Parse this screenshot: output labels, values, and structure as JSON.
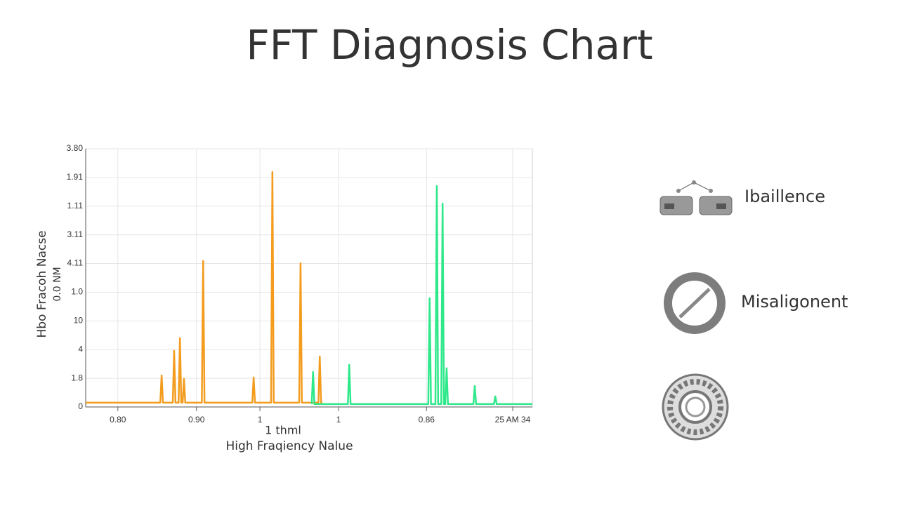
{
  "chart_data": {
    "type": "line",
    "title": "FFT Diagnosis Chart",
    "y_label": [
      "Hbo  Fracoh Nacse",
      "0.0 NM"
    ],
    "x_label": "High Fraqiency Nalue",
    "x_unit": "1 thml",
    "xlim": [
      0,
      100
    ],
    "ylim": [
      0,
      9
    ],
    "xticks": [
      {
        "value": 7.2,
        "label": "0.80"
      },
      {
        "value": 24.8,
        "label": "0.90"
      },
      {
        "value": 39,
        "label": "1"
      },
      {
        "value": 56.6,
        "label": "1"
      },
      {
        "value": 76.3,
        "label": "0.86"
      },
      {
        "value": 95.6,
        "label": "25 AM 34"
      }
    ],
    "yticks": [
      0,
      {
        "value": 1,
        "label": "1.8"
      },
      {
        "value": 2,
        "label": "4"
      },
      {
        "value": 3,
        "label": "10"
      },
      {
        "value": 4,
        "label": "1.0"
      },
      {
        "value": 5,
        "label": "4.11"
      },
      {
        "value": 6,
        "label": "3.11"
      },
      {
        "value": 7,
        "label": "1.11"
      },
      {
        "value": 8,
        "label": "1.91"
      },
      {
        "value": 9,
        "label": "3.80"
      }
    ],
    "grid": true,
    "series": [
      {
        "color": "#f39c1e",
        "x": [
          0,
          16.7,
          17,
          17.3,
          19.5,
          19.8,
          20.1,
          20.8,
          21.1,
          21.4,
          21.7,
          22,
          22.3,
          26,
          26.3,
          26.6,
          37.3,
          37.6,
          37.9,
          41.5,
          41.8,
          42.1,
          47.8,
          48.1,
          48.4,
          52.1,
          52.4,
          52.7,
          53
        ],
        "values": [
          0.15,
          0.15,
          1.1,
          0.15,
          0.15,
          1.96,
          0.15,
          0.15,
          2.4,
          0.15,
          0.15,
          0.98,
          0.15,
          0.15,
          5.09,
          0.15,
          0.15,
          1.03,
          0.15,
          0.15,
          8.19,
          0.15,
          0.15,
          5.01,
          0.15,
          0.15,
          1.76,
          0.15,
          0.15
        ]
      },
      {
        "color": "#2ee88a",
        "x": [
          50.6,
          50.9,
          51.2,
          58.7,
          59,
          59.3,
          76.7,
          77,
          77.3,
          78.3,
          78.6,
          78.9,
          79.6,
          79.9,
          80.2,
          80.5,
          80.8,
          81.1,
          86.8,
          87.1,
          87.4,
          91.4,
          91.7,
          92,
          100
        ],
        "values": [
          0.1,
          1.22,
          0.1,
          0.1,
          1.47,
          0.1,
          0.1,
          3.79,
          0.1,
          0.1,
          7.7,
          0.1,
          0.1,
          7.09,
          0.1,
          0.1,
          1.35,
          0.1,
          0.1,
          0.73,
          0.1,
          0.1,
          0.37,
          0.1,
          0.1
        ]
      }
    ],
    "legend": [
      "Ibaillence",
      "Misaligonent"
    ]
  }
}
